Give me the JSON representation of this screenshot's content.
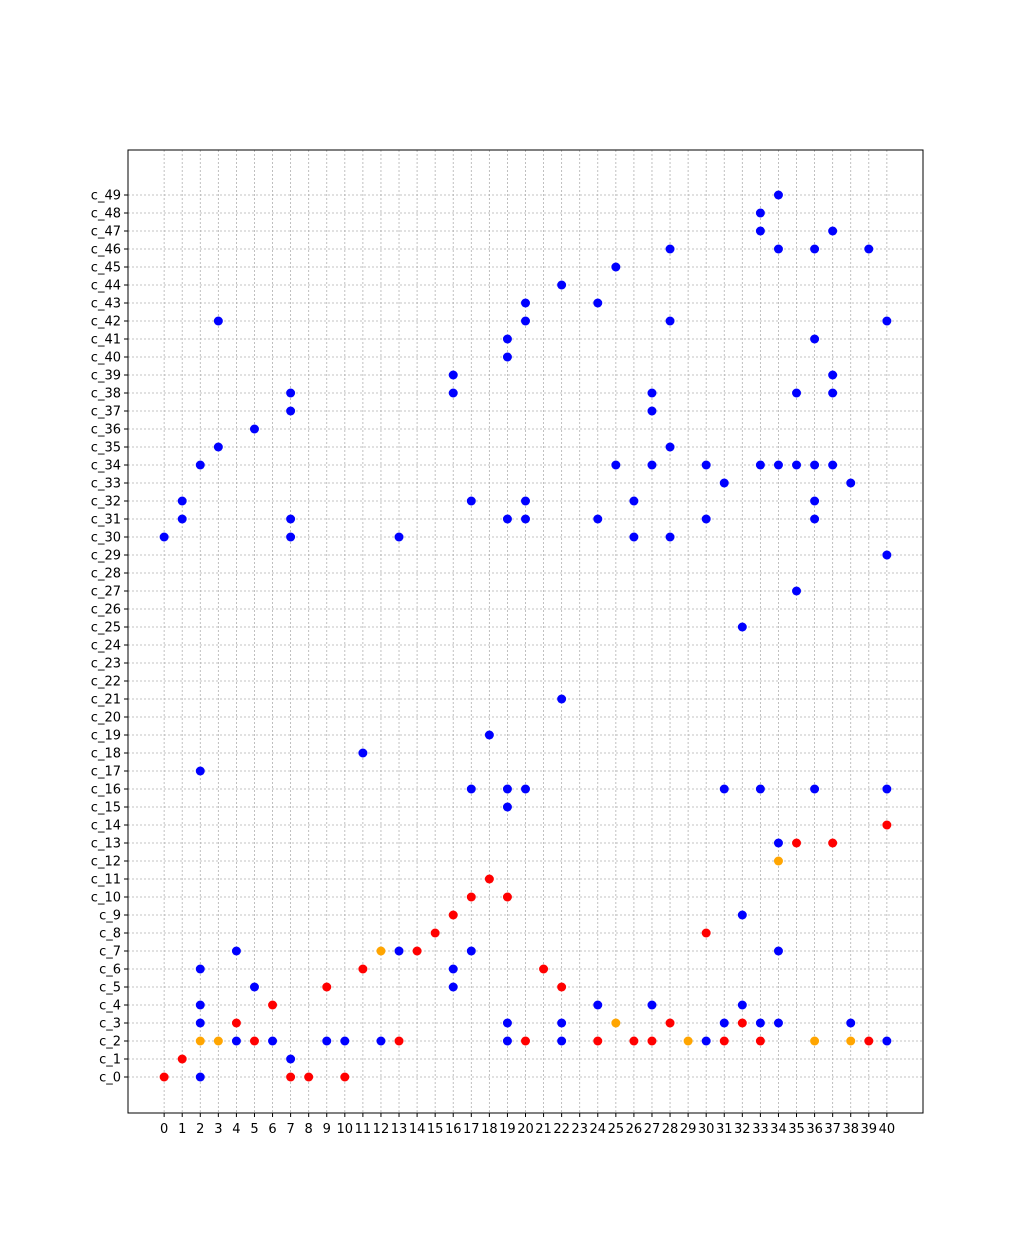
{
  "chart_data": {
    "type": "scatter",
    "title": "",
    "xlabel": "",
    "ylabel": "",
    "grid": true,
    "xlim": [
      -2,
      42
    ],
    "ylim": [
      -2,
      51.5
    ],
    "x_ticks": [
      0,
      1,
      2,
      3,
      4,
      5,
      6,
      7,
      8,
      9,
      10,
      11,
      12,
      13,
      14,
      15,
      16,
      17,
      18,
      19,
      20,
      21,
      22,
      23,
      24,
      25,
      26,
      27,
      28,
      29,
      30,
      31,
      32,
      33,
      34,
      35,
      36,
      37,
      38,
      39,
      40
    ],
    "y_categories": [
      "c_0",
      "c_1",
      "c_2",
      "c_3",
      "c_4",
      "c_5",
      "c_6",
      "c_7",
      "c_8",
      "c_9",
      "c_10",
      "c_11",
      "c_12",
      "c_13",
      "c_14",
      "c_15",
      "c_16",
      "c_17",
      "c_18",
      "c_19",
      "c_20",
      "c_21",
      "c_22",
      "c_23",
      "c_24",
      "c_25",
      "c_26",
      "c_27",
      "c_28",
      "c_29",
      "c_30",
      "c_31",
      "c_32",
      "c_33",
      "c_34",
      "c_35",
      "c_36",
      "c_37",
      "c_38",
      "c_39",
      "c_40",
      "c_41",
      "c_42",
      "c_43",
      "c_44",
      "c_45",
      "c_46",
      "c_47",
      "c_48",
      "c_49"
    ],
    "colors": {
      "blue": "#0000ff",
      "red": "#ff0000",
      "orange": "#ffa500"
    },
    "points": [
      {
        "x": 0,
        "y": 0,
        "c": "red"
      },
      {
        "x": 0,
        "y": 30,
        "c": "blue"
      },
      {
        "x": 1,
        "y": 1,
        "c": "red"
      },
      {
        "x": 1,
        "y": 31,
        "c": "blue"
      },
      {
        "x": 1,
        "y": 32,
        "c": "blue"
      },
      {
        "x": 2,
        "y": 0,
        "c": "blue"
      },
      {
        "x": 2,
        "y": 2,
        "c": "orange"
      },
      {
        "x": 2,
        "y": 3,
        "c": "blue"
      },
      {
        "x": 2,
        "y": 4,
        "c": "blue"
      },
      {
        "x": 2,
        "y": 6,
        "c": "blue"
      },
      {
        "x": 2,
        "y": 17,
        "c": "blue"
      },
      {
        "x": 2,
        "y": 34,
        "c": "blue"
      },
      {
        "x": 3,
        "y": 2,
        "c": "orange"
      },
      {
        "x": 3,
        "y": 35,
        "c": "blue"
      },
      {
        "x": 3,
        "y": 42,
        "c": "blue"
      },
      {
        "x": 4,
        "y": 2,
        "c": "blue"
      },
      {
        "x": 4,
        "y": 3,
        "c": "red"
      },
      {
        "x": 4,
        "y": 7,
        "c": "blue"
      },
      {
        "x": 5,
        "y": 2,
        "c": "red"
      },
      {
        "x": 5,
        "y": 5,
        "c": "blue"
      },
      {
        "x": 5,
        "y": 36,
        "c": "blue"
      },
      {
        "x": 6,
        "y": 2,
        "c": "blue"
      },
      {
        "x": 6,
        "y": 4,
        "c": "red"
      },
      {
        "x": 7,
        "y": 0,
        "c": "red"
      },
      {
        "x": 7,
        "y": 1,
        "c": "blue"
      },
      {
        "x": 7,
        "y": 30,
        "c": "blue"
      },
      {
        "x": 7,
        "y": 31,
        "c": "blue"
      },
      {
        "x": 7,
        "y": 37,
        "c": "blue"
      },
      {
        "x": 7,
        "y": 38,
        "c": "blue"
      },
      {
        "x": 8,
        "y": 0,
        "c": "red"
      },
      {
        "x": 9,
        "y": 2,
        "c": "blue"
      },
      {
        "x": 9,
        "y": 5,
        "c": "red"
      },
      {
        "x": 10,
        "y": 0,
        "c": "red"
      },
      {
        "x": 10,
        "y": 2,
        "c": "blue"
      },
      {
        "x": 11,
        "y": 6,
        "c": "red"
      },
      {
        "x": 11,
        "y": 18,
        "c": "blue"
      },
      {
        "x": 12,
        "y": 2,
        "c": "blue"
      },
      {
        "x": 12,
        "y": 7,
        "c": "orange"
      },
      {
        "x": 13,
        "y": 2,
        "c": "red"
      },
      {
        "x": 13,
        "y": 7,
        "c": "blue"
      },
      {
        "x": 13,
        "y": 30,
        "c": "blue"
      },
      {
        "x": 14,
        "y": 7,
        "c": "red"
      },
      {
        "x": 15,
        "y": 8,
        "c": "red"
      },
      {
        "x": 16,
        "y": 5,
        "c": "blue"
      },
      {
        "x": 16,
        "y": 6,
        "c": "blue"
      },
      {
        "x": 16,
        "y": 9,
        "c": "red"
      },
      {
        "x": 16,
        "y": 38,
        "c": "blue"
      },
      {
        "x": 16,
        "y": 39,
        "c": "blue"
      },
      {
        "x": 17,
        "y": 7,
        "c": "blue"
      },
      {
        "x": 17,
        "y": 10,
        "c": "red"
      },
      {
        "x": 17,
        "y": 16,
        "c": "blue"
      },
      {
        "x": 17,
        "y": 32,
        "c": "blue"
      },
      {
        "x": 18,
        "y": 11,
        "c": "red"
      },
      {
        "x": 18,
        "y": 19,
        "c": "blue"
      },
      {
        "x": 19,
        "y": 2,
        "c": "blue"
      },
      {
        "x": 19,
        "y": 3,
        "c": "blue"
      },
      {
        "x": 19,
        "y": 10,
        "c": "red"
      },
      {
        "x": 19,
        "y": 15,
        "c": "blue"
      },
      {
        "x": 19,
        "y": 16,
        "c": "blue"
      },
      {
        "x": 19,
        "y": 31,
        "c": "blue"
      },
      {
        "x": 19,
        "y": 40,
        "c": "blue"
      },
      {
        "x": 19,
        "y": 41,
        "c": "blue"
      },
      {
        "x": 20,
        "y": 2,
        "c": "red"
      },
      {
        "x": 20,
        "y": 16,
        "c": "blue"
      },
      {
        "x": 20,
        "y": 31,
        "c": "blue"
      },
      {
        "x": 20,
        "y": 32,
        "c": "blue"
      },
      {
        "x": 20,
        "y": 42,
        "c": "blue"
      },
      {
        "x": 20,
        "y": 43,
        "c": "blue"
      },
      {
        "x": 21,
        "y": 6,
        "c": "red"
      },
      {
        "x": 22,
        "y": 2,
        "c": "blue"
      },
      {
        "x": 22,
        "y": 3,
        "c": "blue"
      },
      {
        "x": 22,
        "y": 5,
        "c": "red"
      },
      {
        "x": 22,
        "y": 21,
        "c": "blue"
      },
      {
        "x": 22,
        "y": 44,
        "c": "blue"
      },
      {
        "x": 24,
        "y": 2,
        "c": "red"
      },
      {
        "x": 24,
        "y": 4,
        "c": "blue"
      },
      {
        "x": 24,
        "y": 31,
        "c": "blue"
      },
      {
        "x": 24,
        "y": 43,
        "c": "blue"
      },
      {
        "x": 25,
        "y": 3,
        "c": "orange"
      },
      {
        "x": 25,
        "y": 34,
        "c": "blue"
      },
      {
        "x": 25,
        "y": 45,
        "c": "blue"
      },
      {
        "x": 26,
        "y": 2,
        "c": "red"
      },
      {
        "x": 26,
        "y": 30,
        "c": "blue"
      },
      {
        "x": 26,
        "y": 32,
        "c": "blue"
      },
      {
        "x": 27,
        "y": 2,
        "c": "red"
      },
      {
        "x": 27,
        "y": 4,
        "c": "blue"
      },
      {
        "x": 27,
        "y": 34,
        "c": "blue"
      },
      {
        "x": 27,
        "y": 37,
        "c": "blue"
      },
      {
        "x": 27,
        "y": 38,
        "c": "blue"
      },
      {
        "x": 28,
        "y": 3,
        "c": "red"
      },
      {
        "x": 28,
        "y": 30,
        "c": "blue"
      },
      {
        "x": 28,
        "y": 35,
        "c": "blue"
      },
      {
        "x": 28,
        "y": 42,
        "c": "blue"
      },
      {
        "x": 28,
        "y": 46,
        "c": "blue"
      },
      {
        "x": 29,
        "y": 2,
        "c": "orange"
      },
      {
        "x": 30,
        "y": 2,
        "c": "blue"
      },
      {
        "x": 30,
        "y": 8,
        "c": "red"
      },
      {
        "x": 30,
        "y": 31,
        "c": "blue"
      },
      {
        "x": 30,
        "y": 34,
        "c": "blue"
      },
      {
        "x": 31,
        "y": 2,
        "c": "red"
      },
      {
        "x": 31,
        "y": 3,
        "c": "blue"
      },
      {
        "x": 31,
        "y": 16,
        "c": "blue"
      },
      {
        "x": 31,
        "y": 33,
        "c": "blue"
      },
      {
        "x": 32,
        "y": 3,
        "c": "red"
      },
      {
        "x": 32,
        "y": 4,
        "c": "blue"
      },
      {
        "x": 32,
        "y": 9,
        "c": "blue"
      },
      {
        "x": 32,
        "y": 25,
        "c": "blue"
      },
      {
        "x": 33,
        "y": 2,
        "c": "red"
      },
      {
        "x": 33,
        "y": 3,
        "c": "blue"
      },
      {
        "x": 33,
        "y": 16,
        "c": "blue"
      },
      {
        "x": 33,
        "y": 34,
        "c": "blue"
      },
      {
        "x": 33,
        "y": 47,
        "c": "blue"
      },
      {
        "x": 33,
        "y": 48,
        "c": "blue"
      },
      {
        "x": 34,
        "y": 3,
        "c": "blue"
      },
      {
        "x": 34,
        "y": 7,
        "c": "blue"
      },
      {
        "x": 34,
        "y": 12,
        "c": "orange"
      },
      {
        "x": 34,
        "y": 13,
        "c": "blue"
      },
      {
        "x": 34,
        "y": 34,
        "c": "blue"
      },
      {
        "x": 34,
        "y": 46,
        "c": "blue"
      },
      {
        "x": 34,
        "y": 49,
        "c": "blue"
      },
      {
        "x": 35,
        "y": 13,
        "c": "red"
      },
      {
        "x": 35,
        "y": 27,
        "c": "blue"
      },
      {
        "x": 35,
        "y": 34,
        "c": "blue"
      },
      {
        "x": 35,
        "y": 38,
        "c": "blue"
      },
      {
        "x": 36,
        "y": 2,
        "c": "orange"
      },
      {
        "x": 36,
        "y": 16,
        "c": "blue"
      },
      {
        "x": 36,
        "y": 31,
        "c": "blue"
      },
      {
        "x": 36,
        "y": 32,
        "c": "blue"
      },
      {
        "x": 36,
        "y": 34,
        "c": "blue"
      },
      {
        "x": 36,
        "y": 41,
        "c": "blue"
      },
      {
        "x": 36,
        "y": 46,
        "c": "blue"
      },
      {
        "x": 37,
        "y": 13,
        "c": "red"
      },
      {
        "x": 37,
        "y": 34,
        "c": "blue"
      },
      {
        "x": 37,
        "y": 38,
        "c": "blue"
      },
      {
        "x": 37,
        "y": 39,
        "c": "blue"
      },
      {
        "x": 37,
        "y": 47,
        "c": "blue"
      },
      {
        "x": 38,
        "y": 2,
        "c": "orange"
      },
      {
        "x": 38,
        "y": 3,
        "c": "blue"
      },
      {
        "x": 38,
        "y": 33,
        "c": "blue"
      },
      {
        "x": 39,
        "y": 2,
        "c": "red"
      },
      {
        "x": 39,
        "y": 46,
        "c": "blue"
      },
      {
        "x": 40,
        "y": 2,
        "c": "blue"
      },
      {
        "x": 40,
        "y": 14,
        "c": "red"
      },
      {
        "x": 40,
        "y": 16,
        "c": "blue"
      },
      {
        "x": 40,
        "y": 29,
        "c": "blue"
      },
      {
        "x": 40,
        "y": 42,
        "c": "blue"
      }
    ]
  }
}
